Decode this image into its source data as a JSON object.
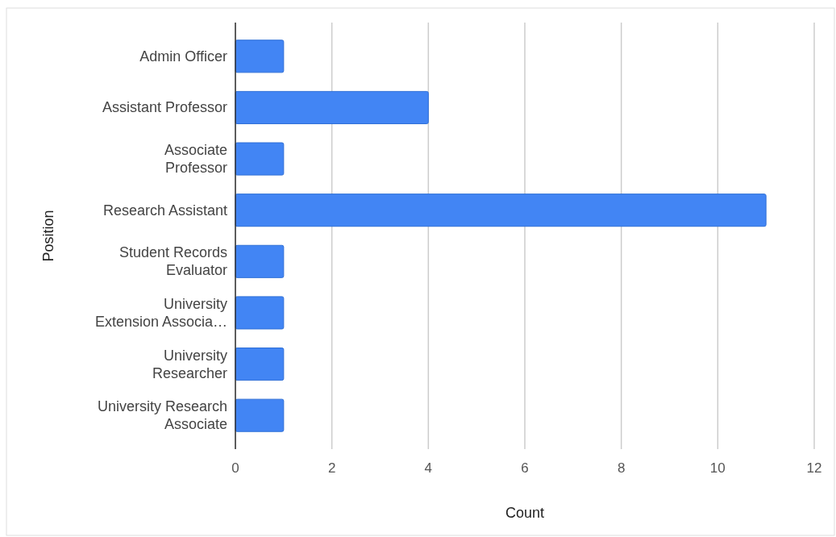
{
  "chart_data": {
    "type": "bar",
    "orientation": "horizontal",
    "xlabel": "Count",
    "ylabel": "Position",
    "categories": [
      "Admin Officer",
      "Assistant Professor",
      "Associate\nProfessor",
      "Research Assistant",
      "Student Records\nEvaluator",
      "University\nExtension Associa…",
      "University\nResearcher",
      "University Research\nAssociate"
    ],
    "values": [
      1,
      4,
      1,
      11,
      1,
      1,
      1,
      1
    ],
    "color": "#4285f4",
    "xlim": [
      0,
      12
    ],
    "xticks": [
      0,
      2,
      4,
      6,
      8,
      10,
      12
    ],
    "grid": "x"
  }
}
